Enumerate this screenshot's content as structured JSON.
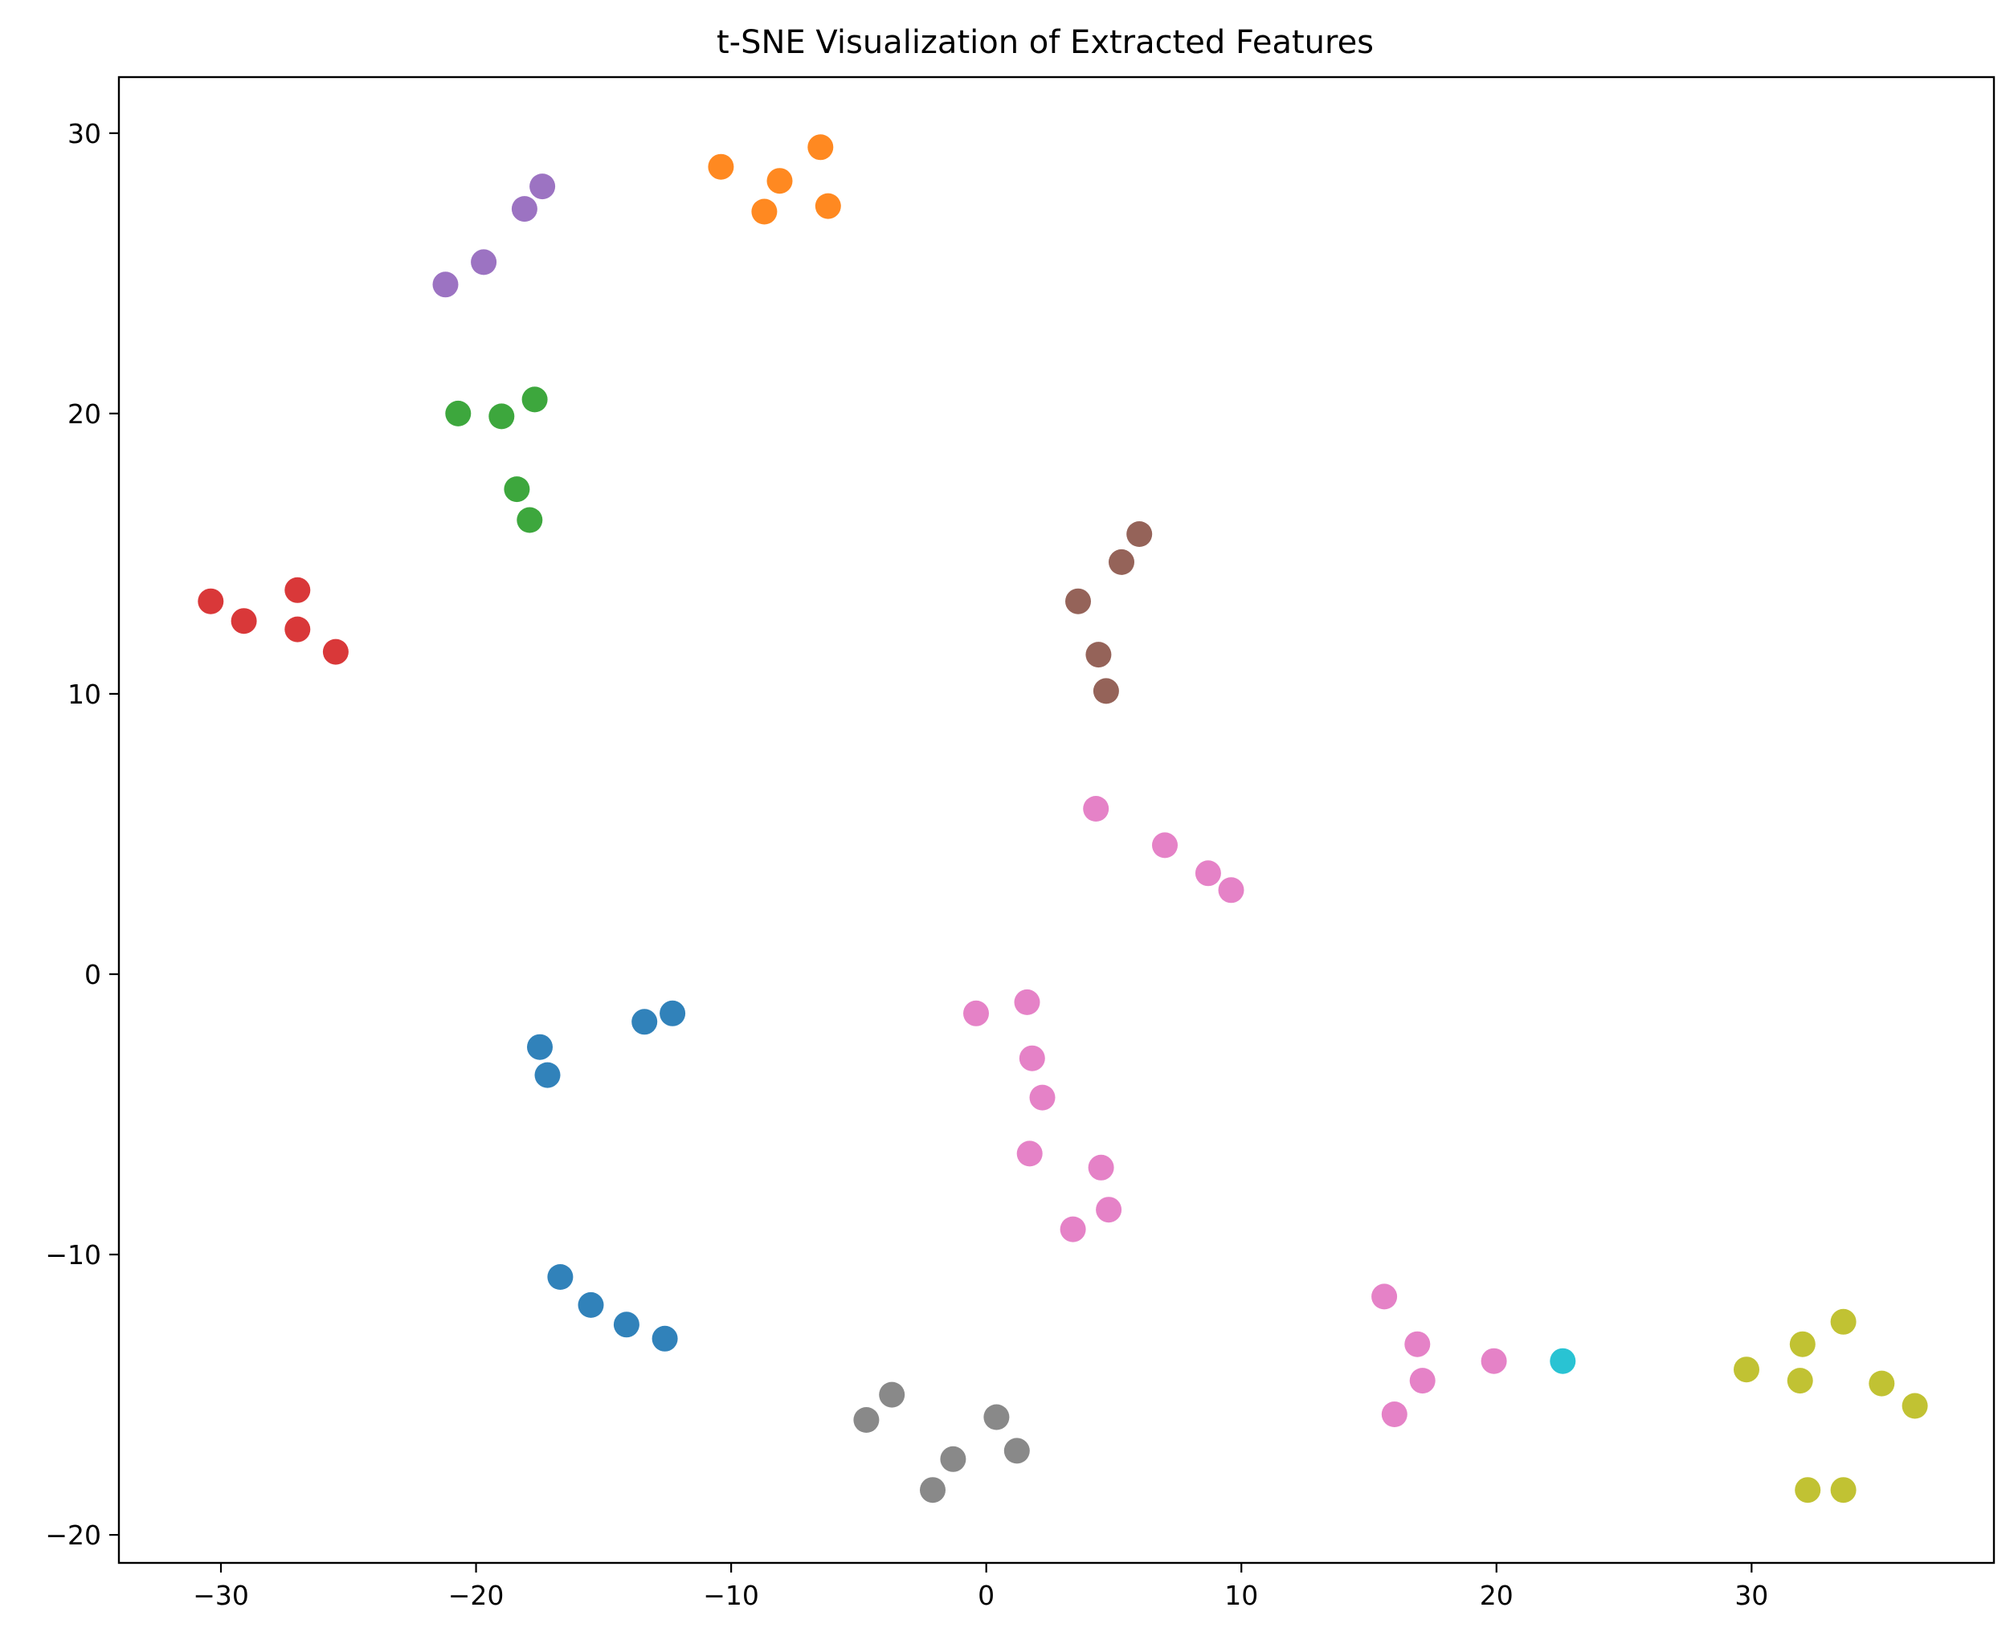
{
  "chart_data": {
    "type": "scatter",
    "title": "t-SNE Visualization of Extracted Features",
    "xlabel": "",
    "ylabel": "",
    "xlim": [
      -34,
      39.5
    ],
    "ylim": [
      -21,
      32
    ],
    "xticks": [
      -30,
      -20,
      -10,
      0,
      10,
      20,
      30
    ],
    "yticks": [
      -20,
      -10,
      0,
      10,
      20,
      30
    ],
    "xtick_labels": [
      "−30",
      "−20",
      "−10",
      "0",
      "10",
      "20",
      "30"
    ],
    "ytick_labels": [
      "−20",
      "−10",
      "0",
      "10",
      "20",
      "30"
    ],
    "grid": false,
    "legend": "none",
    "series": [
      {
        "color": "#1f77b4",
        "points": [
          [
            -17.5,
            -2.6
          ],
          [
            -17.2,
            -3.6
          ],
          [
            -13.4,
            -1.7
          ],
          [
            -12.3,
            -1.4
          ],
          [
            -16.7,
            -10.8
          ],
          [
            -15.5,
            -11.8
          ],
          [
            -14.1,
            -12.5
          ],
          [
            -12.6,
            -13.0
          ]
        ]
      },
      {
        "color": "#ff7f0e",
        "points": [
          [
            -10.4,
            28.8
          ],
          [
            -8.1,
            28.3
          ],
          [
            -6.5,
            29.5
          ],
          [
            -8.7,
            27.2
          ],
          [
            -6.2,
            27.4
          ]
        ]
      },
      {
        "color": "#2ca02c",
        "points": [
          [
            -20.7,
            20.0
          ],
          [
            -19.0,
            19.9
          ],
          [
            -17.7,
            20.5
          ],
          [
            -18.4,
            17.3
          ],
          [
            -17.9,
            16.2
          ]
        ]
      },
      {
        "color": "#d62728",
        "points": [
          [
            -30.4,
            13.3
          ],
          [
            -29.1,
            12.6
          ],
          [
            -27.0,
            13.7
          ],
          [
            -27.0,
            12.3
          ],
          [
            -25.5,
            11.5
          ]
        ]
      },
      {
        "color": "#9467bd",
        "points": [
          [
            -21.2,
            24.6
          ],
          [
            -19.7,
            25.4
          ],
          [
            -18.1,
            27.3
          ],
          [
            -17.4,
            28.1
          ]
        ]
      },
      {
        "color": "#8c564b",
        "points": [
          [
            6.0,
            15.7
          ],
          [
            5.3,
            14.7
          ],
          [
            3.6,
            13.3
          ],
          [
            4.4,
            11.4
          ],
          [
            4.7,
            10.1
          ]
        ]
      },
      {
        "color": "#e377c2",
        "points": [
          [
            4.3,
            5.9
          ],
          [
            7.0,
            4.6
          ],
          [
            8.7,
            3.6
          ],
          [
            9.6,
            3.0
          ],
          [
            -0.4,
            -1.4
          ],
          [
            1.6,
            -1.0
          ],
          [
            1.8,
            -3.0
          ],
          [
            2.2,
            -4.4
          ],
          [
            1.7,
            -6.4
          ],
          [
            4.5,
            -6.9
          ],
          [
            4.8,
            -8.4
          ],
          [
            3.4,
            -9.1
          ],
          [
            15.6,
            -11.5
          ],
          [
            16.9,
            -13.2
          ],
          [
            17.1,
            -14.5
          ],
          [
            16.0,
            -15.7
          ],
          [
            19.9,
            -13.8
          ]
        ]
      },
      {
        "color": "#7f7f7f",
        "points": [
          [
            -3.7,
            -15.0
          ],
          [
            -4.7,
            -15.9
          ],
          [
            0.4,
            -15.8
          ],
          [
            -1.3,
            -17.3
          ],
          [
            1.2,
            -17.0
          ],
          [
            -2.1,
            -18.4
          ]
        ]
      },
      {
        "color": "#bcbd22",
        "points": [
          [
            29.8,
            -14.1
          ],
          [
            31.9,
            -14.5
          ],
          [
            32.0,
            -13.2
          ],
          [
            33.6,
            -12.4
          ],
          [
            35.1,
            -14.6
          ],
          [
            36.4,
            -15.4
          ],
          [
            32.2,
            -18.4
          ],
          [
            33.6,
            -18.4
          ]
        ]
      },
      {
        "color": "#17becf",
        "points": [
          [
            22.6,
            -13.8
          ]
        ]
      }
    ]
  }
}
